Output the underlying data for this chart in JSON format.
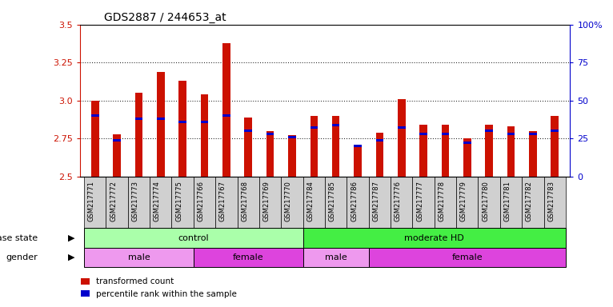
{
  "title": "GDS2887 / 244653_at",
  "samples": [
    "GSM217771",
    "GSM217772",
    "GSM217773",
    "GSM217774",
    "GSM217775",
    "GSM217766",
    "GSM217767",
    "GSM217768",
    "GSM217769",
    "GSM217770",
    "GSM217784",
    "GSM217785",
    "GSM217786",
    "GSM217787",
    "GSM217776",
    "GSM217777",
    "GSM217778",
    "GSM217779",
    "GSM217780",
    "GSM217781",
    "GSM217782",
    "GSM217783"
  ],
  "transformed_count": [
    3.0,
    2.78,
    3.05,
    3.19,
    3.13,
    3.04,
    3.38,
    2.89,
    2.8,
    2.77,
    2.9,
    2.9,
    2.7,
    2.79,
    3.01,
    2.84,
    2.84,
    2.75,
    2.84,
    2.83,
    2.8,
    2.9
  ],
  "percentile_rank": [
    40,
    24,
    38,
    38,
    36,
    36,
    40,
    30,
    28,
    26,
    32,
    34,
    20,
    24,
    32,
    28,
    28,
    22,
    30,
    28,
    28,
    30
  ],
  "ylim_left": [
    2.5,
    3.5
  ],
  "ylim_right": [
    0,
    100
  ],
  "yticks_left": [
    2.5,
    2.75,
    3.0,
    3.25,
    3.5
  ],
  "yticks_right": [
    0,
    25,
    50,
    75,
    100
  ],
  "ytick_labels_right": [
    "0",
    "25",
    "50",
    "75",
    "100%"
  ],
  "bar_color": "#cc1100",
  "percentile_color": "#0000cc",
  "disease_state_groups": [
    {
      "label": "control",
      "start": 0,
      "end": 10,
      "color": "#aaffaa"
    },
    {
      "label": "moderate HD",
      "start": 10,
      "end": 22,
      "color": "#44ee44"
    }
  ],
  "gender_groups": [
    {
      "label": "male",
      "start": 0,
      "end": 5,
      "color": "#ee99ee"
    },
    {
      "label": "female",
      "start": 5,
      "end": 10,
      "color": "#dd44dd"
    },
    {
      "label": "male",
      "start": 10,
      "end": 13,
      "color": "#ee99ee"
    },
    {
      "label": "female",
      "start": 13,
      "end": 22,
      "color": "#dd44dd"
    }
  ],
  "disease_label": "disease state",
  "gender_label": "gender",
  "legend_items": [
    {
      "label": "transformed count",
      "color": "#cc1100"
    },
    {
      "label": "percentile rank within the sample",
      "color": "#0000cc"
    }
  ],
  "bar_width": 0.35,
  "ybase": 2.5,
  "xticklabel_bg": "#d0d0d0",
  "gridline_y": [
    2.75,
    3.0,
    3.25
  ]
}
